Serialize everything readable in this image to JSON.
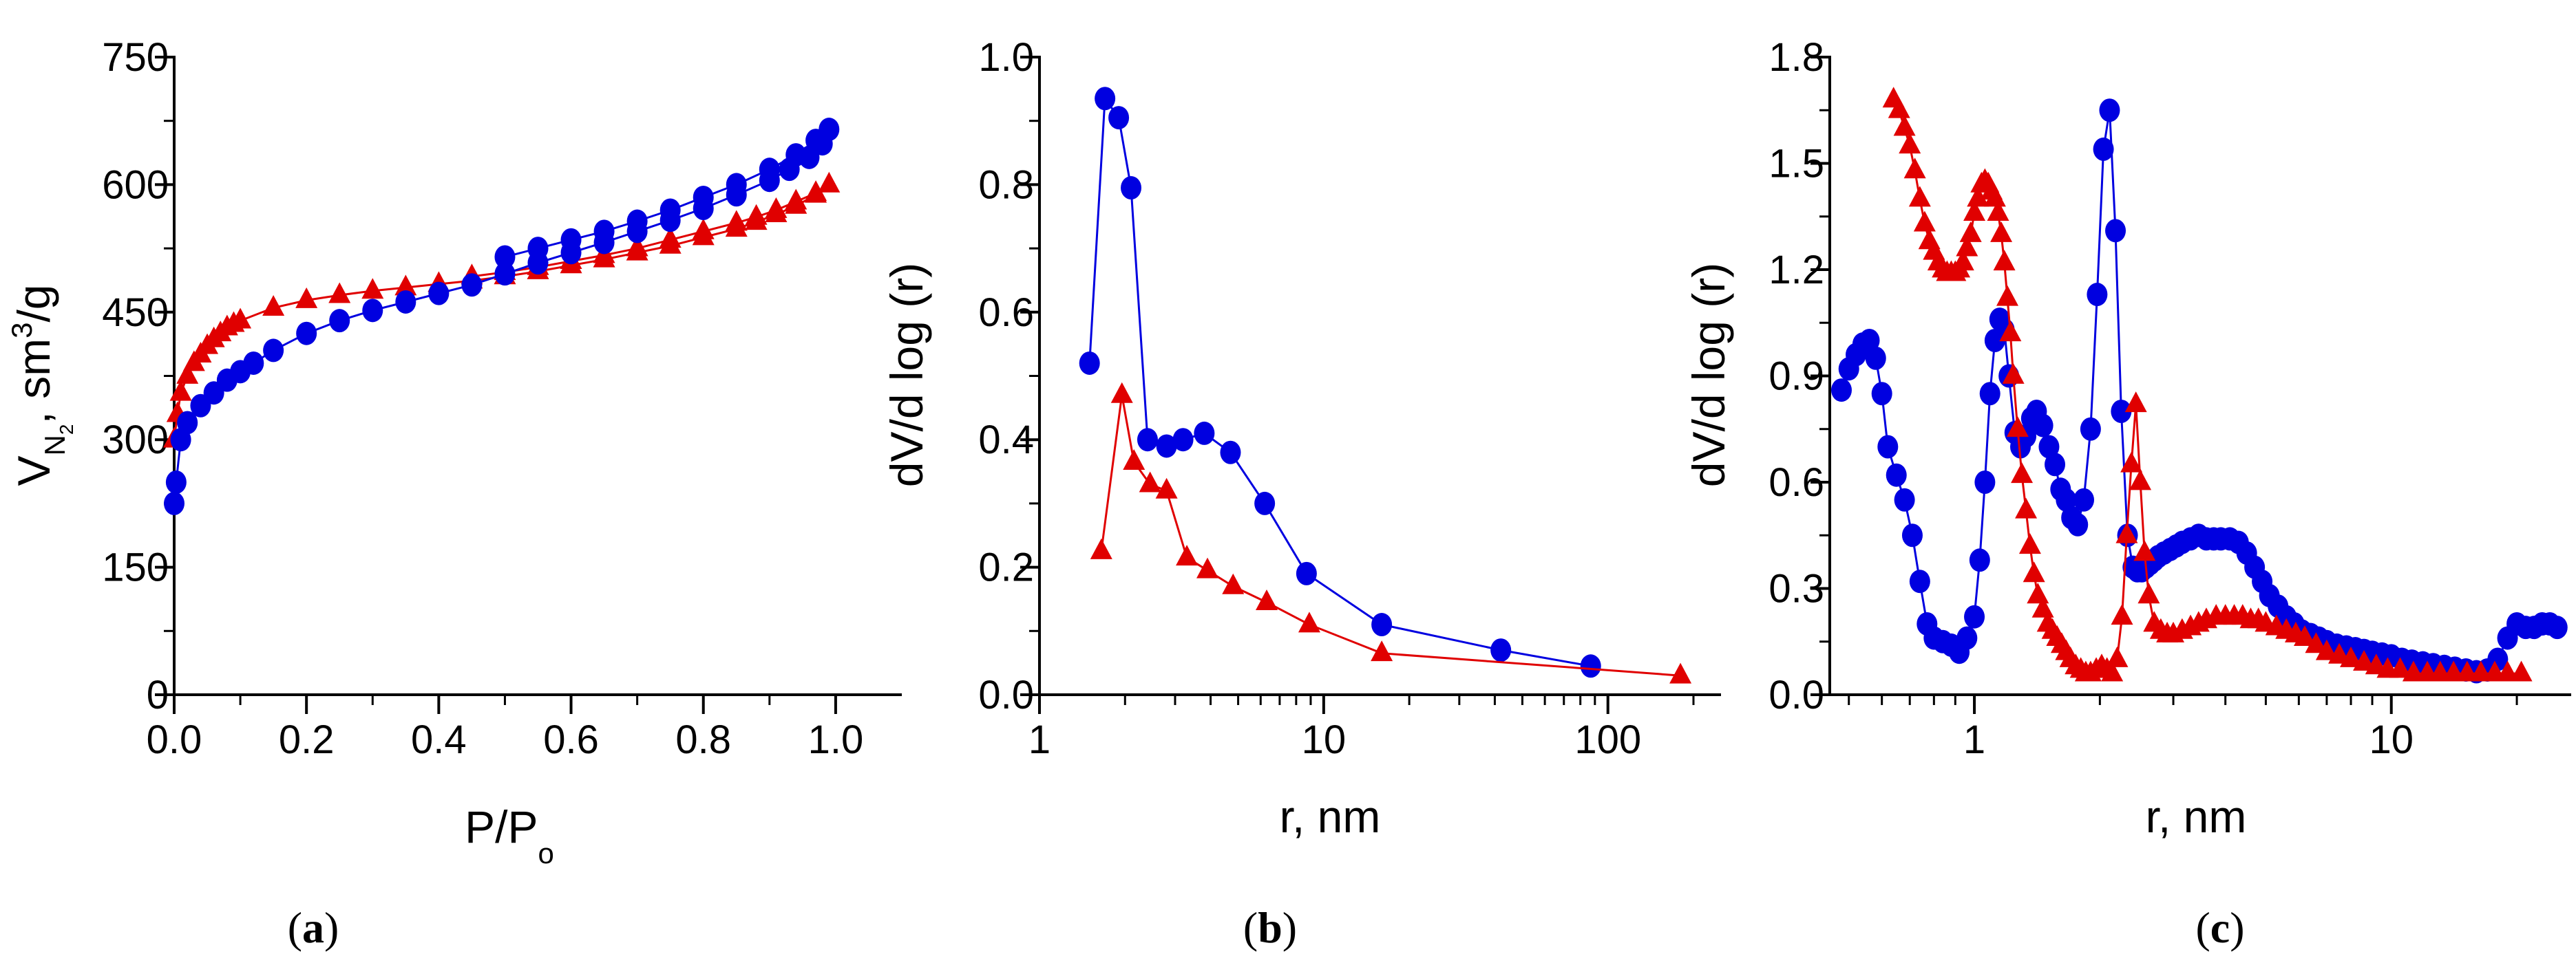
{
  "chart_data": [
    {
      "id": "a",
      "type": "scatter",
      "panel_label": "(a)",
      "panel_letter": "a",
      "xlabel_main": "P/P",
      "xlabel_sub": "o",
      "ylabel_main": "V",
      "ylabel_sub": "N",
      "ylabel_subsub": "2",
      "ylabel_rest": ", sm",
      "ylabel_sup": "3",
      "ylabel_tail": "/g",
      "xscale": "linear",
      "xlim": [
        0,
        1.1
      ],
      "ylim": [
        0,
        750
      ],
      "xticks": [
        0.0,
        0.2,
        0.4,
        0.6,
        0.8,
        1.0
      ],
      "xtick_labels": [
        "0.0",
        "0.2",
        "0.4",
        "0.6",
        "0.8",
        "1.0"
      ],
      "yticks": [
        0,
        150,
        300,
        450,
        600,
        750
      ],
      "ytick_labels": [
        "0",
        "150",
        "300",
        "450",
        "600",
        "750"
      ],
      "grid": false,
      "series": [
        {
          "color": "#e00000",
          "marker": "triangle",
          "x": [
            0.0,
            0.005,
            0.01,
            0.02,
            0.03,
            0.04,
            0.05,
            0.06,
            0.07,
            0.08,
            0.09,
            0.1,
            0.15,
            0.2,
            0.25,
            0.3,
            0.35,
            0.4,
            0.45,
            0.5,
            0.55,
            0.6,
            0.65,
            0.7,
            0.75,
            0.8,
            0.85,
            0.88,
            0.91,
            0.94,
            0.97,
            0.99,
            0.97,
            0.94,
            0.91,
            0.88,
            0.85,
            0.8,
            0.75,
            0.7,
            0.65,
            0.6,
            0.55,
            0.5,
            0.45
          ],
          "y": [
            300,
            330,
            355,
            375,
            390,
            400,
            410,
            418,
            425,
            432,
            436,
            440,
            455,
            464,
            470,
            475,
            479,
            483,
            487,
            492,
            498,
            505,
            512,
            520,
            528,
            538,
            548,
            556,
            565,
            575,
            588,
            600,
            590,
            580,
            570,
            562,
            555,
            545,
            535,
            525,
            517,
            510,
            503,
            497,
            492
          ]
        },
        {
          "color": "#0000e0",
          "marker": "circle",
          "x": [
            0.0,
            0.003,
            0.01,
            0.02,
            0.04,
            0.06,
            0.08,
            0.1,
            0.12,
            0.15,
            0.2,
            0.25,
            0.3,
            0.35,
            0.4,
            0.45,
            0.5,
            0.55,
            0.6,
            0.65,
            0.7,
            0.75,
            0.8,
            0.85,
            0.9,
            0.93,
            0.96,
            0.98,
            0.99,
            0.97,
            0.94,
            0.9,
            0.85,
            0.8,
            0.75,
            0.7,
            0.65,
            0.6,
            0.55,
            0.5
          ],
          "y": [
            225,
            250,
            300,
            320,
            340,
            355,
            370,
            380,
            390,
            405,
            425,
            440,
            452,
            462,
            472,
            482,
            495,
            508,
            520,
            532,
            545,
            558,
            572,
            588,
            605,
            618,
            632,
            648,
            665,
            652,
            635,
            618,
            600,
            585,
            570,
            557,
            545,
            535,
            525,
            515
          ]
        }
      ]
    },
    {
      "id": "b",
      "type": "line",
      "panel_label": "(b)",
      "panel_letter": "b",
      "xlabel_main": "r, nm",
      "ylabel_main": "dV/d log (r)",
      "xscale": "log",
      "xlim": [
        1,
        250
      ],
      "ylim": [
        0,
        1.0
      ],
      "xticks": [
        1,
        10,
        100
      ],
      "xtick_labels": [
        "1",
        "10",
        "100"
      ],
      "yticks": [
        0.0,
        0.2,
        0.4,
        0.6,
        0.8,
        1.0
      ],
      "ytick_labels": [
        "0.0",
        "0.2",
        "0.4",
        "0.6",
        "0.8",
        "1.0"
      ],
      "grid": false,
      "series": [
        {
          "color": "#0000e0",
          "marker": "circle",
          "x": [
            1.5,
            1.7,
            1.9,
            2.1,
            2.4,
            2.8,
            3.2,
            3.8,
            4.7,
            6.2,
            8.7,
            16,
            42,
            87
          ],
          "y": [
            0.52,
            0.935,
            0.905,
            0.795,
            0.4,
            0.39,
            0.4,
            0.41,
            0.38,
            0.3,
            0.19,
            0.11,
            0.07,
            0.045
          ]
        },
        {
          "color": "#e00000",
          "marker": "triangle",
          "x": [
            1.65,
            1.95,
            2.15,
            2.45,
            2.8,
            3.3,
            3.9,
            4.8,
            6.3,
            8.9,
            16,
            180
          ],
          "y": [
            0.225,
            0.47,
            0.365,
            0.33,
            0.32,
            0.215,
            0.195,
            0.17,
            0.145,
            0.11,
            0.065,
            0.03
          ]
        }
      ]
    },
    {
      "id": "c",
      "type": "line",
      "panel_label": "(c)",
      "panel_letter": "c",
      "xlabel_main": "r, nm",
      "ylabel_main": "dV/d log (r)",
      "xscale": "log",
      "xlim": [
        0.45,
        27
      ],
      "ylim": [
        0,
        1.8
      ],
      "xticks": [
        1,
        10
      ],
      "xtick_labels": [
        "1",
        "10"
      ],
      "yticks": [
        0.0,
        0.3,
        0.6,
        0.9,
        1.2,
        1.5,
        1.8
      ],
      "ytick_labels": [
        "0.0",
        "0.3",
        "0.6",
        "0.9",
        "1.2",
        "1.5",
        "1.8"
      ],
      "grid": false,
      "series": [
        {
          "color": "#0000e0",
          "marker": "circle",
          "x": [
            0.48,
            0.5,
            0.52,
            0.54,
            0.56,
            0.58,
            0.6,
            0.62,
            0.65,
            0.68,
            0.71,
            0.74,
            0.77,
            0.8,
            0.84,
            0.88,
            0.92,
            0.96,
            1.0,
            1.03,
            1.06,
            1.09,
            1.12,
            1.15,
            1.18,
            1.21,
            1.25,
            1.29,
            1.33,
            1.37,
            1.41,
            1.46,
            1.51,
            1.56,
            1.61,
            1.66,
            1.71,
            1.77,
            1.83,
            1.9,
            1.97,
            2.04,
            2.11,
            2.18,
            2.25,
            2.33,
            2.4,
            2.46,
            2.52,
            2.58,
            2.64,
            2.7,
            2.76,
            2.85,
            2.95,
            3.05,
            3.15,
            3.3,
            3.45,
            3.6,
            3.75,
            3.9,
            4.1,
            4.3,
            4.5,
            4.7,
            4.9,
            5.1,
            5.35,
            5.6,
            5.85,
            6.1,
            6.4,
            6.7,
            7.0,
            7.4,
            7.8,
            8.2,
            8.6,
            9.0,
            9.5,
            10.0,
            10.6,
            11.2,
            11.9,
            12.6,
            13.4,
            14.2,
            15.1,
            16.0,
            17.0,
            18.0,
            19.0,
            20.0,
            21.0,
            22.0,
            23.0,
            24.0,
            25.0
          ],
          "y": [
            0.86,
            0.92,
            0.96,
            0.99,
            1.0,
            0.95,
            0.85,
            0.7,
            0.62,
            0.55,
            0.45,
            0.32,
            0.2,
            0.16,
            0.15,
            0.14,
            0.12,
            0.16,
            0.22,
            0.38,
            0.6,
            0.85,
            1.0,
            1.06,
            1.03,
            0.9,
            0.74,
            0.7,
            0.73,
            0.78,
            0.8,
            0.76,
            0.7,
            0.65,
            0.58,
            0.55,
            0.5,
            0.48,
            0.55,
            0.75,
            1.13,
            1.54,
            1.65,
            1.31,
            0.8,
            0.45,
            0.36,
            0.35,
            0.35,
            0.36,
            0.37,
            0.38,
            0.39,
            0.4,
            0.41,
            0.42,
            0.43,
            0.44,
            0.45,
            0.44,
            0.44,
            0.44,
            0.44,
            0.43,
            0.4,
            0.36,
            0.32,
            0.28,
            0.25,
            0.22,
            0.2,
            0.18,
            0.17,
            0.16,
            0.15,
            0.14,
            0.135,
            0.13,
            0.125,
            0.12,
            0.115,
            0.11,
            0.1,
            0.095,
            0.09,
            0.085,
            0.08,
            0.075,
            0.07,
            0.065,
            0.07,
            0.1,
            0.16,
            0.2,
            0.19,
            0.19,
            0.2,
            0.2,
            0.19
          ]
        },
        {
          "color": "#e00000",
          "marker": "triangle",
          "x": [
            0.64,
            0.66,
            0.68,
            0.7,
            0.72,
            0.74,
            0.76,
            0.78,
            0.8,
            0.82,
            0.84,
            0.86,
            0.88,
            0.9,
            0.92,
            0.94,
            0.96,
            0.98,
            1.0,
            1.02,
            1.04,
            1.06,
            1.08,
            1.1,
            1.12,
            1.14,
            1.16,
            1.18,
            1.2,
            1.22,
            1.24,
            1.27,
            1.3,
            1.33,
            1.36,
            1.39,
            1.42,
            1.46,
            1.5,
            1.54,
            1.58,
            1.62,
            1.66,
            1.7,
            1.75,
            1.8,
            1.85,
            1.9,
            1.96,
            2.02,
            2.08,
            2.14,
            2.2,
            2.26,
            2.32,
            2.38,
            2.44,
            2.5,
            2.56,
            2.62,
            2.7,
            2.8,
            2.9,
            3.0,
            3.15,
            3.3,
            3.45,
            3.6,
            3.8,
            4.0,
            4.2,
            4.4,
            4.6,
            4.8,
            5.0,
            5.3,
            5.6,
            5.9,
            6.2,
            6.6,
            7.0,
            7.5,
            8.0,
            8.6,
            9.2,
            9.8,
            10.5,
            11.3,
            12.2,
            13.1,
            14.1,
            15.2,
            16.4,
            17.7,
            19.0,
            20.5
          ],
          "y": [
            1.68,
            1.65,
            1.6,
            1.55,
            1.48,
            1.4,
            1.33,
            1.28,
            1.25,
            1.22,
            1.2,
            1.19,
            1.19,
            1.19,
            1.2,
            1.22,
            1.26,
            1.3,
            1.36,
            1.4,
            1.44,
            1.45,
            1.44,
            1.42,
            1.4,
            1.36,
            1.3,
            1.22,
            1.12,
            1.02,
            0.9,
            0.75,
            0.62,
            0.52,
            0.42,
            0.34,
            0.28,
            0.24,
            0.2,
            0.18,
            0.16,
            0.14,
            0.12,
            0.1,
            0.08,
            0.07,
            0.06,
            0.06,
            0.07,
            0.08,
            0.07,
            0.06,
            0.1,
            0.22,
            0.45,
            0.65,
            0.82,
            0.6,
            0.4,
            0.28,
            0.2,
            0.18,
            0.17,
            0.17,
            0.18,
            0.19,
            0.2,
            0.21,
            0.22,
            0.22,
            0.22,
            0.22,
            0.21,
            0.21,
            0.2,
            0.19,
            0.18,
            0.17,
            0.16,
            0.14,
            0.12,
            0.11,
            0.1,
            0.09,
            0.08,
            0.07,
            0.07,
            0.06,
            0.06,
            0.06,
            0.06,
            0.06,
            0.06,
            0.06,
            0.06,
            0.06
          ]
        }
      ]
    }
  ]
}
